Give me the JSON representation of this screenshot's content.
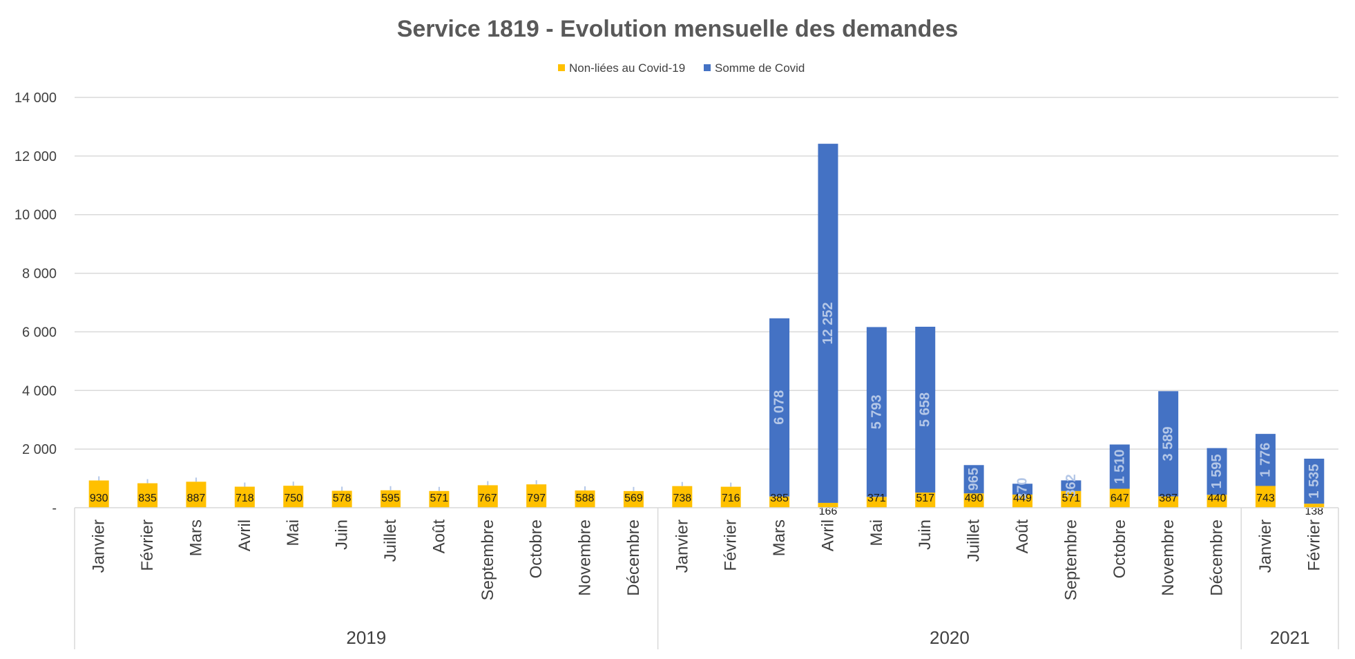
{
  "chart_data": {
    "type": "bar",
    "stacked": true,
    "title": "Service 1819 - Evolution mensuelle des demandes",
    "legend_position": "top-center",
    "grid": true,
    "ylim": [
      0,
      14000
    ],
    "y_ticks": [
      "-",
      "2 000",
      "4 000",
      "6 000",
      "8 000",
      "10 000",
      "12 000",
      "14 000"
    ],
    "categories": [
      "Janvier",
      "Février",
      "Mars",
      "Avril",
      "Mai",
      "Juin",
      "Juillet",
      "Août",
      "Septembre",
      "Octobre",
      "Novembre",
      "Décembre",
      "Janvier",
      "Février",
      "Mars",
      "Avril",
      "Mai",
      "Juin",
      "Juillet",
      "Août",
      "Septembre",
      "Octobre",
      "Novembre",
      "Décembre",
      "Janvier",
      "Février"
    ],
    "groups": [
      {
        "label": "2019",
        "count": 12
      },
      {
        "label": "2020",
        "count": 12
      },
      {
        "label": "2021",
        "count": 2
      }
    ],
    "series": [
      {
        "name": "Non-liées au Covid-19",
        "color": "#ffc000",
        "values": [
          930,
          835,
          887,
          718,
          750,
          578,
          595,
          571,
          767,
          797,
          588,
          569,
          738,
          716,
          385,
          166,
          371,
          517,
          490,
          449,
          571,
          647,
          387,
          440,
          743,
          138
        ],
        "labels": [
          "930",
          "835",
          "887",
          "718",
          "750",
          "578",
          "595",
          "571",
          "767",
          "797",
          "588",
          "569",
          "738",
          "716",
          "385",
          "166",
          "371",
          "517",
          "490",
          "449",
          "571",
          "647",
          "387",
          "440",
          "743",
          "138"
        ]
      },
      {
        "name": "Somme de Covid",
        "color": "#4472c4",
        "values": [
          0,
          0,
          0,
          0,
          0,
          0,
          0,
          0,
          0,
          0,
          0,
          0,
          0,
          0,
          6078,
          12252,
          5793,
          5658,
          965,
          370,
          362,
          1510,
          3589,
          1595,
          1776,
          1535
        ],
        "labels": [
          "",
          "",
          "",
          "",
          "",
          "",
          "",
          "",
          "",
          "",
          "",
          "",
          "",
          "",
          "6 078",
          "12 252",
          "5 793",
          "5 658",
          "965",
          "370",
          "362",
          "1 510",
          "3 589",
          "1 595",
          "1 776",
          "1 535"
        ]
      }
    ]
  }
}
